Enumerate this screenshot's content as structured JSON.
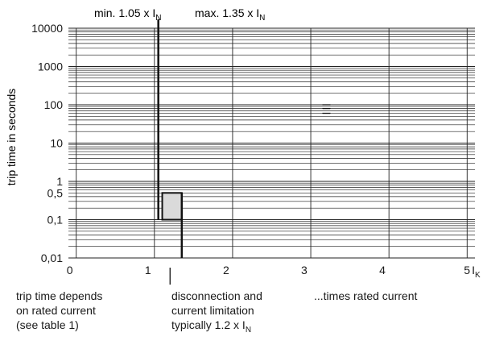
{
  "chart_data": {
    "type": "line",
    "title": "",
    "xlabel": "...times rated current",
    "ylabel": "trip time in seconds",
    "x_axis": {
      "ticks": [
        0,
        1,
        2,
        3,
        4,
        5
      ],
      "tick_labels": [
        "0",
        "1",
        "2",
        "3",
        "4",
        "5"
      ],
      "last_tick_subscript": "K",
      "last_tick_prefix": "I",
      "range": [
        -0.1,
        5.1
      ],
      "grid": true
    },
    "y_axis": {
      "scale": "log",
      "range": [
        0.01,
        10000
      ],
      "ticks": [
        10000,
        1000,
        100,
        10,
        1,
        0.5,
        0.1,
        0.01
      ],
      "tick_labels": [
        "10000",
        "1000",
        "100",
        "10",
        "1",
        "0,5",
        "0,1",
        "0,01"
      ],
      "grid": true
    },
    "markers": {
      "min_label": "min. 1.05 x I",
      "min_sub": "N",
      "max_label": "max. 1.35 x I",
      "max_sub": "N",
      "min_x": 1.05,
      "max_x": 1.35,
      "typical_x": 1.2
    },
    "trip_zone": {
      "x_from": 1.1,
      "x_to": 1.35,
      "y_from": 0.1,
      "y_to": 0.5,
      "fill": "#dadada"
    },
    "curve": {
      "description_points": [
        {
          "x": 1.05,
          "y": 10000
        },
        {
          "x": 1.05,
          "y": 0.5
        },
        {
          "x": 1.35,
          "y": 0.5
        },
        {
          "x": 1.35,
          "y": 0.01
        }
      ]
    },
    "mark_3_2": {
      "x": 3.2,
      "y": [
        60,
        80,
        100
      ]
    }
  },
  "notes": {
    "trip_time": [
      "trip time depends",
      "on rated current",
      "(see table 1)"
    ],
    "disconnection": [
      "disconnection and",
      "current limitation",
      "typically 1.2 x I"
    ],
    "disconnection_sub": "N",
    "times_rated": "...times rated current"
  },
  "colors": {
    "grid": "#222222",
    "curve": "#111111",
    "zone": "#dadada"
  }
}
